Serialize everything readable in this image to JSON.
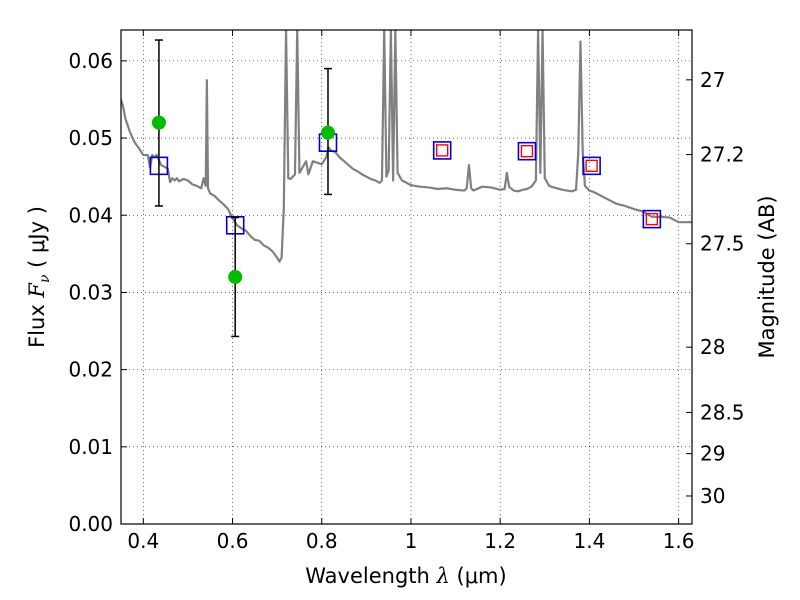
{
  "chart_data": {
    "type": "scatter",
    "xlabel": {
      "prefix": "Wavelength  ",
      "symbol": "λ",
      "unit": " (μm)"
    },
    "ylabel": {
      "prefix": "Flux  ",
      "symbol": "F",
      "subscript": "ν",
      "unit": "  ( μJy )"
    },
    "y2label": "Magnitude (AB)",
    "xlim": [
      0.35,
      1.63
    ],
    "ylim": [
      0.0,
      0.064
    ],
    "x_ticks": [
      {
        "value": 0.4,
        "label": "0.4"
      },
      {
        "value": 0.6,
        "label": "0.6"
      },
      {
        "value": 0.8,
        "label": "0.8"
      },
      {
        "value": 1.0,
        "label": "1"
      },
      {
        "value": 1.2,
        "label": "1.2"
      },
      {
        "value": 1.4,
        "label": "1.4"
      },
      {
        "value": 1.6,
        "label": "1.6"
      }
    ],
    "y_ticks": [
      {
        "value": 0.0,
        "label": "0.00"
      },
      {
        "value": 0.01,
        "label": "0.01"
      },
      {
        "value": 0.02,
        "label": "0.02"
      },
      {
        "value": 0.03,
        "label": "0.03"
      },
      {
        "value": 0.04,
        "label": "0.04"
      },
      {
        "value": 0.05,
        "label": "0.05"
      },
      {
        "value": 0.06,
        "label": "0.06"
      }
    ],
    "y2_ticks": [
      {
        "mag": 27,
        "label": "27"
      },
      {
        "mag": 27.2,
        "label": "27.2"
      },
      {
        "mag": 27.5,
        "label": "27.5"
      },
      {
        "mag": 28,
        "label": "28"
      },
      {
        "mag": 28.5,
        "label": "28.5"
      },
      {
        "mag": 29,
        "label": "29"
      },
      {
        "mag": 30,
        "label": "30"
      }
    ],
    "grid": true,
    "colors": {
      "model_line": "#808080",
      "observed_points": "#00bb00",
      "error_bars": "#000000",
      "model_band_squares": "#0000cc",
      "model_band_squares_inner": "#ff0000"
    },
    "series": [
      {
        "kind": "model_spectrum",
        "points": [
          [
            0.35,
            0.055
          ],
          [
            0.355,
            0.054
          ],
          [
            0.36,
            0.0525
          ],
          [
            0.37,
            0.0508
          ],
          [
            0.38,
            0.0495
          ],
          [
            0.39,
            0.0487
          ],
          [
            0.4,
            0.0478
          ],
          [
            0.41,
            0.0478
          ],
          [
            0.415,
            0.0462
          ],
          [
            0.42,
            0.0478
          ],
          [
            0.425,
            0.0475
          ],
          [
            0.43,
            0.0478
          ],
          [
            0.44,
            0.0465
          ],
          [
            0.45,
            0.0462
          ],
          [
            0.455,
            0.046
          ],
          [
            0.46,
            0.0443
          ],
          [
            0.465,
            0.0448
          ],
          [
            0.47,
            0.0445
          ],
          [
            0.475,
            0.0448
          ],
          [
            0.48,
            0.0444
          ],
          [
            0.49,
            0.0447
          ],
          [
            0.5,
            0.0445
          ],
          [
            0.51,
            0.044
          ],
          [
            0.52,
            0.0438
          ],
          [
            0.53,
            0.0435
          ],
          [
            0.535,
            0.0448
          ],
          [
            0.54,
            0.0438
          ],
          [
            0.5425,
            0.0575
          ],
          [
            0.545,
            0.0435
          ],
          [
            0.55,
            0.0428
          ],
          [
            0.56,
            0.0425
          ],
          [
            0.57,
            0.0419
          ],
          [
            0.58,
            0.0414
          ],
          [
            0.59,
            0.0408
          ],
          [
            0.6,
            0.0396
          ],
          [
            0.61,
            0.0387
          ],
          [
            0.62,
            0.0383
          ],
          [
            0.63,
            0.038
          ],
          [
            0.64,
            0.0373
          ],
          [
            0.65,
            0.0368
          ],
          [
            0.66,
            0.0367
          ],
          [
            0.67,
            0.0361
          ],
          [
            0.68,
            0.0358
          ],
          [
            0.69,
            0.0353
          ],
          [
            0.7,
            0.0345
          ],
          [
            0.705,
            0.034
          ],
          [
            0.71,
            0.0345
          ],
          [
            0.715,
            0.041
          ],
          [
            0.72,
            0.064
          ],
          [
            0.725,
            0.0448
          ],
          [
            0.73,
            0.0447
          ],
          [
            0.74,
            0.0453
          ],
          [
            0.745,
            0.064
          ],
          [
            0.75,
            0.0455
          ],
          [
            0.76,
            0.0465
          ],
          [
            0.765,
            0.047
          ],
          [
            0.77,
            0.0453
          ],
          [
            0.78,
            0.047
          ],
          [
            0.79,
            0.0468
          ],
          [
            0.8,
            0.0466
          ],
          [
            0.81,
            0.0475
          ],
          [
            0.815,
            0.0488
          ],
          [
            0.82,
            0.0484
          ],
          [
            0.83,
            0.0482
          ],
          [
            0.84,
            0.0475
          ],
          [
            0.85,
            0.047
          ],
          [
            0.86,
            0.0465
          ],
          [
            0.87,
            0.046
          ],
          [
            0.88,
            0.0457
          ],
          [
            0.89,
            0.0453
          ],
          [
            0.9,
            0.045
          ],
          [
            0.91,
            0.0447
          ],
          [
            0.92,
            0.0445
          ],
          [
            0.93,
            0.0442
          ],
          [
            0.935,
            0.0445
          ],
          [
            0.94,
            0.064
          ],
          [
            0.945,
            0.045
          ],
          [
            0.95,
            0.0458
          ],
          [
            0.955,
            0.064
          ],
          [
            0.96,
            0.0445
          ],
          [
            0.965,
            0.064
          ],
          [
            0.97,
            0.0455
          ],
          [
            0.98,
            0.0445
          ],
          [
            0.99,
            0.0442
          ],
          [
            1.0,
            0.0439
          ],
          [
            1.02,
            0.0437
          ],
          [
            1.04,
            0.0436
          ],
          [
            1.06,
            0.0434
          ],
          [
            1.08,
            0.0435
          ],
          [
            1.1,
            0.0433
          ],
          [
            1.12,
            0.0432
          ],
          [
            1.125,
            0.0435
          ],
          [
            1.13,
            0.0465
          ],
          [
            1.135,
            0.0435
          ],
          [
            1.14,
            0.0432
          ],
          [
            1.16,
            0.0437
          ],
          [
            1.18,
            0.0436
          ],
          [
            1.2,
            0.0433
          ],
          [
            1.21,
            0.0434
          ],
          [
            1.215,
            0.0455
          ],
          [
            1.22,
            0.0437
          ],
          [
            1.23,
            0.0432
          ],
          [
            1.24,
            0.0431
          ],
          [
            1.25,
            0.0433
          ],
          [
            1.26,
            0.0434
          ],
          [
            1.27,
            0.0437
          ],
          [
            1.28,
            0.0445
          ],
          [
            1.285,
            0.064
          ],
          [
            1.29,
            0.0455
          ],
          [
            1.295,
            0.064
          ],
          [
            1.3,
            0.0448
          ],
          [
            1.31,
            0.0438
          ],
          [
            1.32,
            0.0436
          ],
          [
            1.34,
            0.0433
          ],
          [
            1.36,
            0.0431
          ],
          [
            1.37,
            0.0433
          ],
          [
            1.375,
            0.048
          ],
          [
            1.38,
            0.0625
          ],
          [
            1.385,
            0.0482
          ],
          [
            1.39,
            0.0438
          ],
          [
            1.4,
            0.0432
          ],
          [
            1.41,
            0.043
          ],
          [
            1.42,
            0.0427
          ],
          [
            1.44,
            0.0421
          ],
          [
            1.46,
            0.0415
          ],
          [
            1.48,
            0.0412
          ],
          [
            1.5,
            0.0408
          ],
          [
            1.52,
            0.0405
          ],
          [
            1.54,
            0.0398
          ],
          [
            1.56,
            0.0398
          ],
          [
            1.58,
            0.0397
          ],
          [
            1.6,
            0.0391
          ],
          [
            1.63,
            0.0391
          ]
        ]
      },
      {
        "kind": "observed_points",
        "points": [
          {
            "x": 0.435,
            "y": 0.052,
            "y_err_low": 0.0412,
            "y_err_high": 0.0627
          },
          {
            "x": 0.606,
            "y": 0.032,
            "y_err_low": 0.0243,
            "y_err_high": 0.0397
          },
          {
            "x": 0.814,
            "y": 0.0507,
            "y_err_low": 0.0427,
            "y_err_high": 0.059
          }
        ]
      },
      {
        "kind": "model_band_fluxes",
        "points": [
          {
            "x": 0.435,
            "y": 0.0464,
            "filled": false
          },
          {
            "x": 0.606,
            "y": 0.0387,
            "filled": false
          },
          {
            "x": 0.814,
            "y": 0.0494,
            "filled": false
          },
          {
            "x": 1.07,
            "y": 0.0484,
            "filled": true
          },
          {
            "x": 1.26,
            "y": 0.0483,
            "filled": true
          },
          {
            "x": 1.405,
            "y": 0.0464,
            "filled": true
          },
          {
            "x": 1.54,
            "y": 0.0395,
            "filled": true
          }
        ]
      }
    ]
  }
}
